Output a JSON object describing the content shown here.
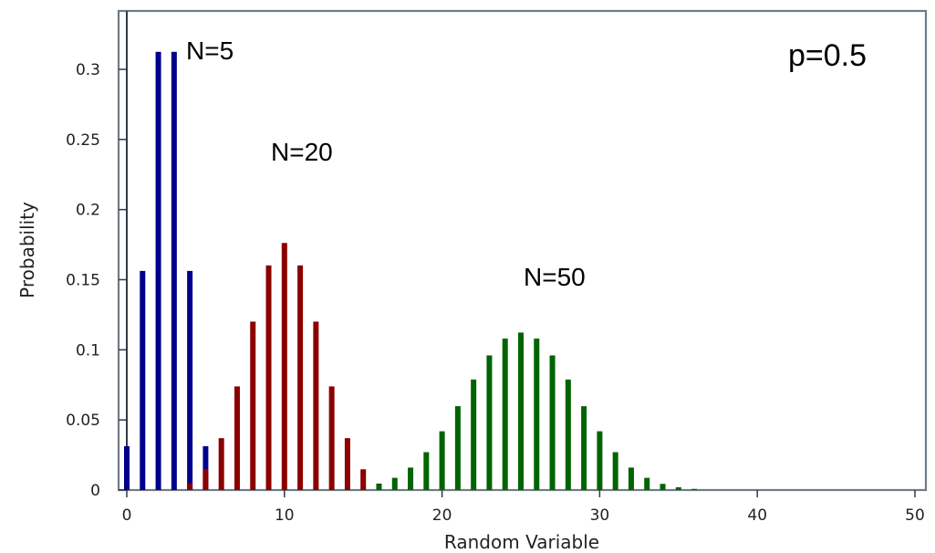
{
  "chart_data": {
    "type": "bar",
    "xlabel": "Random Variable",
    "ylabel": "Probability",
    "xlim": [
      0,
      50
    ],
    "ylim": [
      0,
      0.33
    ],
    "x_ticks": [
      0,
      10,
      20,
      30,
      40,
      50
    ],
    "y_ticks": [
      0,
      0.05,
      0.1,
      0.15,
      0.2,
      0.25,
      0.3
    ],
    "grid": false,
    "annotations": [
      {
        "text": "N=5"
      },
      {
        "text": "N=20"
      },
      {
        "text": "N=50"
      },
      {
        "text": "p=0.5"
      }
    ],
    "series": [
      {
        "color": "#00008b",
        "x": [
          0,
          1,
          2,
          3,
          4,
          5
        ],
        "values": [
          0.03125,
          0.15625,
          0.3125,
          0.3125,
          0.15625,
          0.03125
        ]
      },
      {
        "color": "#8b0000",
        "x": [
          4,
          5,
          6,
          7,
          8,
          9,
          10,
          11,
          12,
          13,
          14,
          15,
          16
        ],
        "values": [
          0.0046,
          0.0148,
          0.037,
          0.0739,
          0.1201,
          0.1602,
          0.1762,
          0.1602,
          0.1201,
          0.0739,
          0.037,
          0.0148,
          0.0046
        ]
      },
      {
        "color": "#006400",
        "x": [
          16,
          17,
          18,
          19,
          20,
          21,
          22,
          23,
          24,
          25,
          26,
          27,
          28,
          29,
          30,
          31,
          32,
          33,
          34,
          35,
          36
        ],
        "values": [
          0.0044,
          0.0087,
          0.016,
          0.027,
          0.0419,
          0.0598,
          0.0788,
          0.096,
          0.108,
          0.1123,
          0.108,
          0.096,
          0.0788,
          0.0598,
          0.0419,
          0.027,
          0.016,
          0.0087,
          0.0044,
          0.002,
          0.0008
        ]
      }
    ]
  }
}
